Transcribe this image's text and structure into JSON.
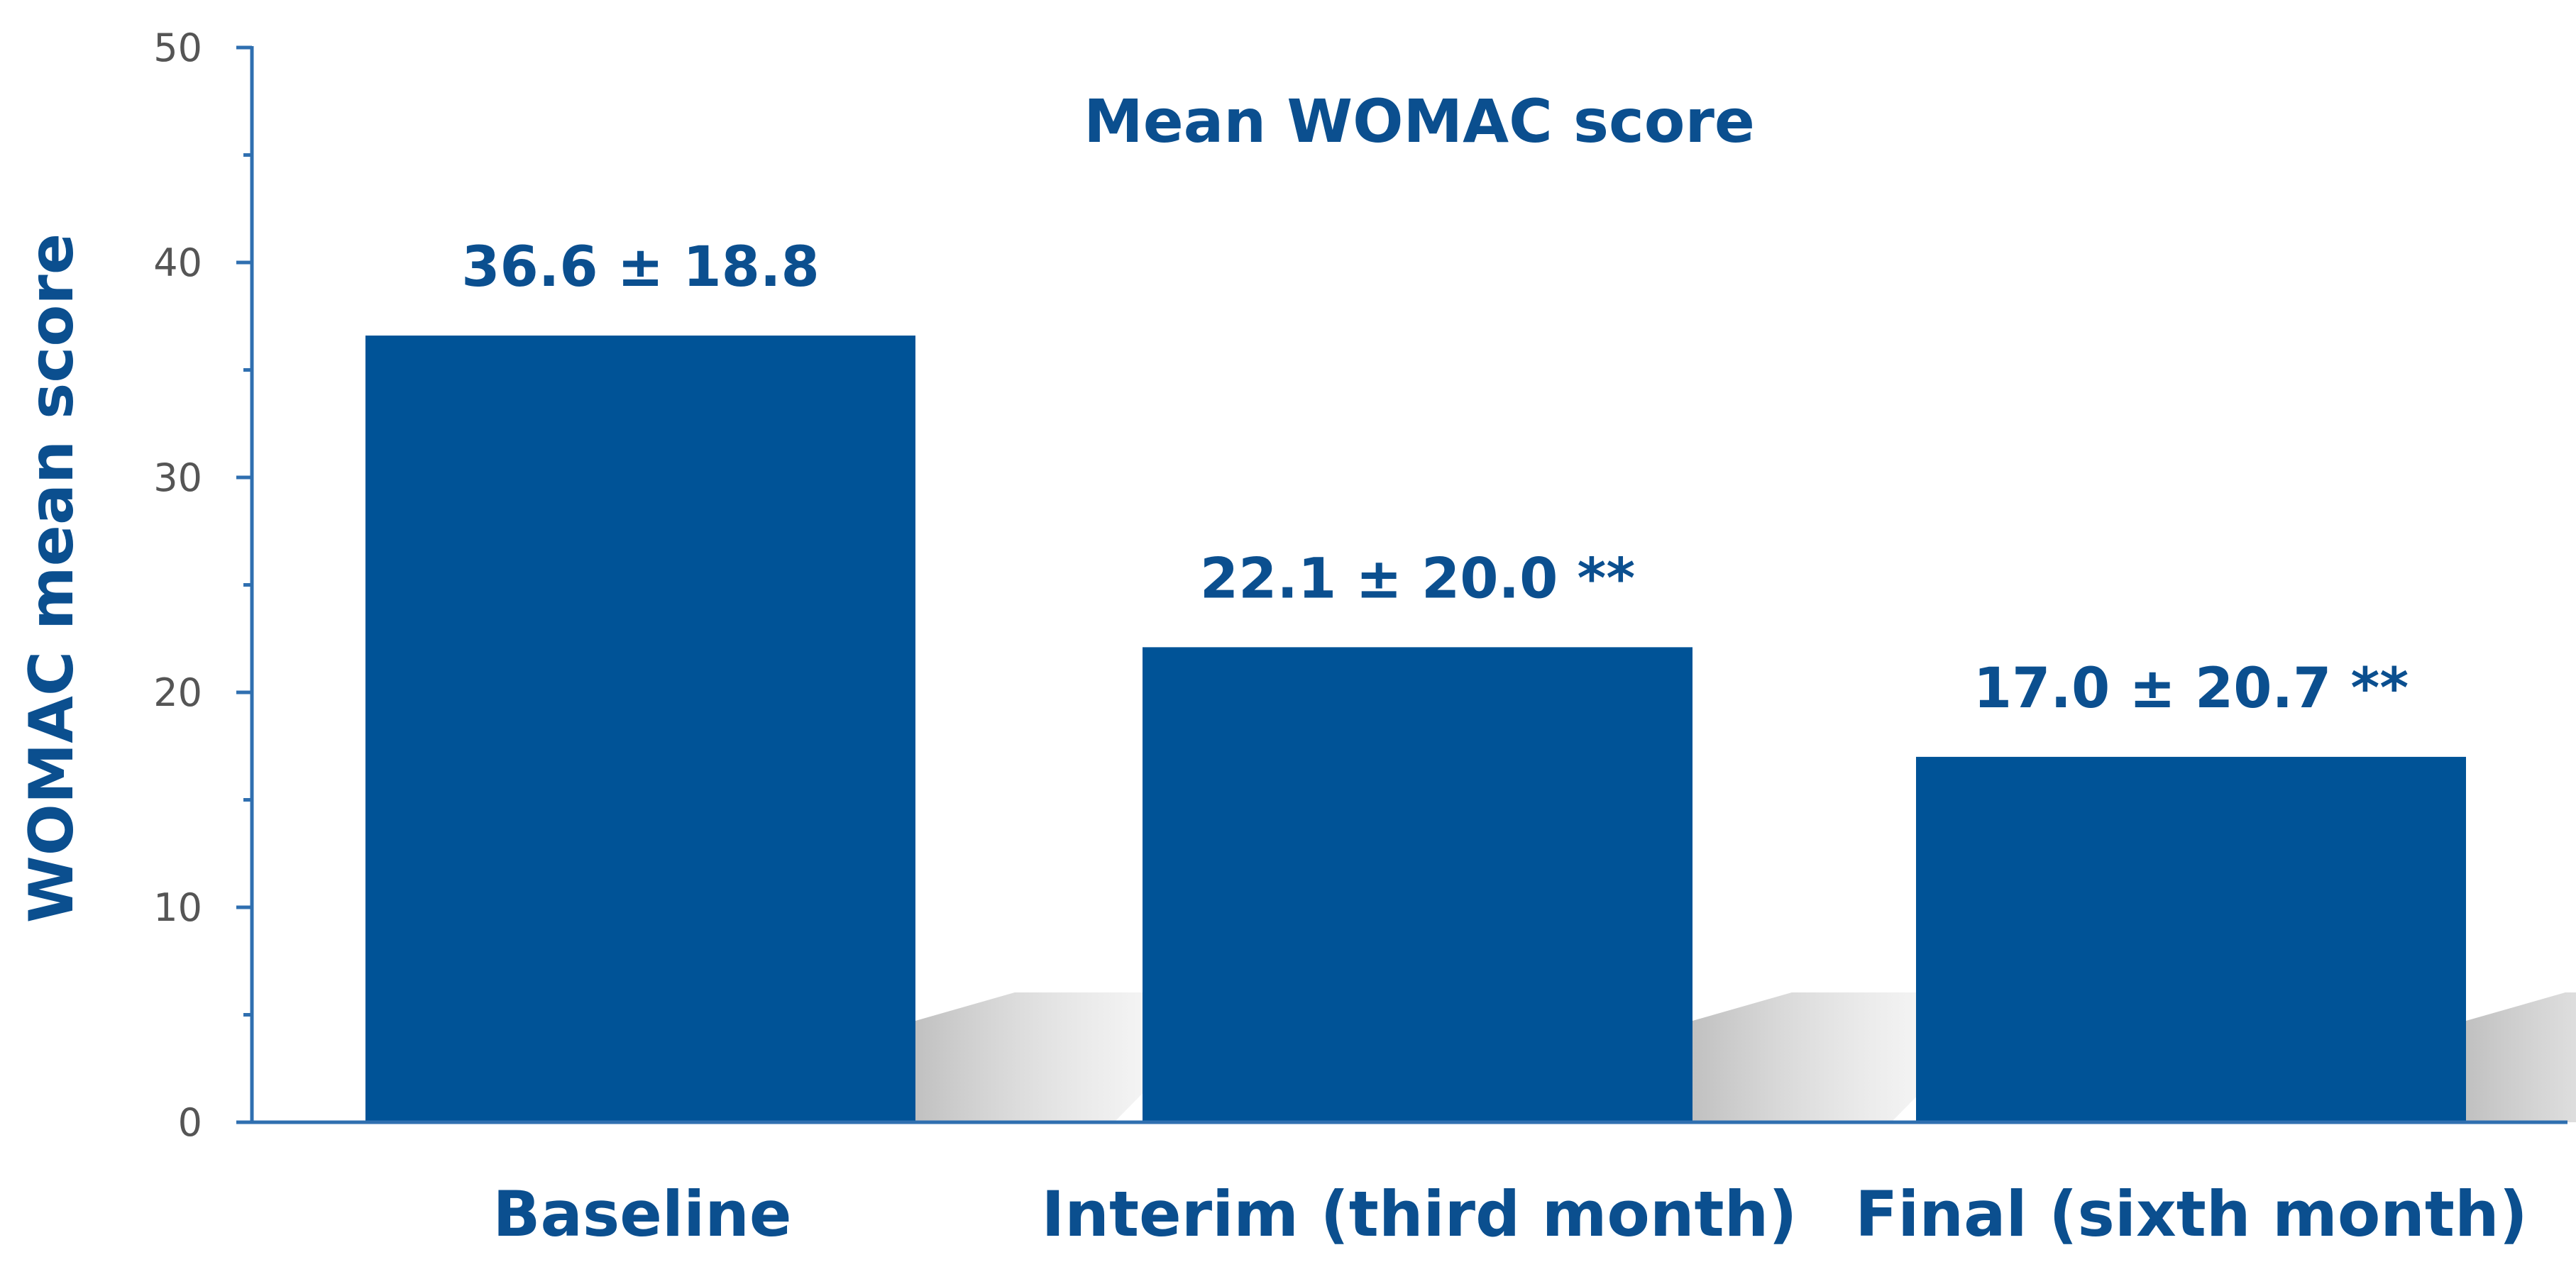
{
  "chart_data": {
    "type": "bar",
    "title": "Mean WOMAC score",
    "xlabel": "",
    "ylabel": "WOMAC mean score",
    "categories": [
      "Baseline",
      "Interim (third month)",
      "Final (sixth month)"
    ],
    "values": [
      36.6,
      22.1,
      17.0
    ],
    "data_labels": [
      "36.6 ± 18.8",
      "22.1 ± 20.0 **",
      "17.0 ± 20.7 **"
    ],
    "ylim": [
      0,
      50
    ],
    "yticks": [
      0,
      10,
      20,
      30,
      40,
      50
    ],
    "grid": false,
    "legend": "none",
    "colors": {
      "bar": "#005397",
      "text": "#0b4f8f",
      "axis": "#2f6fb0",
      "tick_text": "#555555",
      "shadow": "#c9c9c9"
    }
  }
}
